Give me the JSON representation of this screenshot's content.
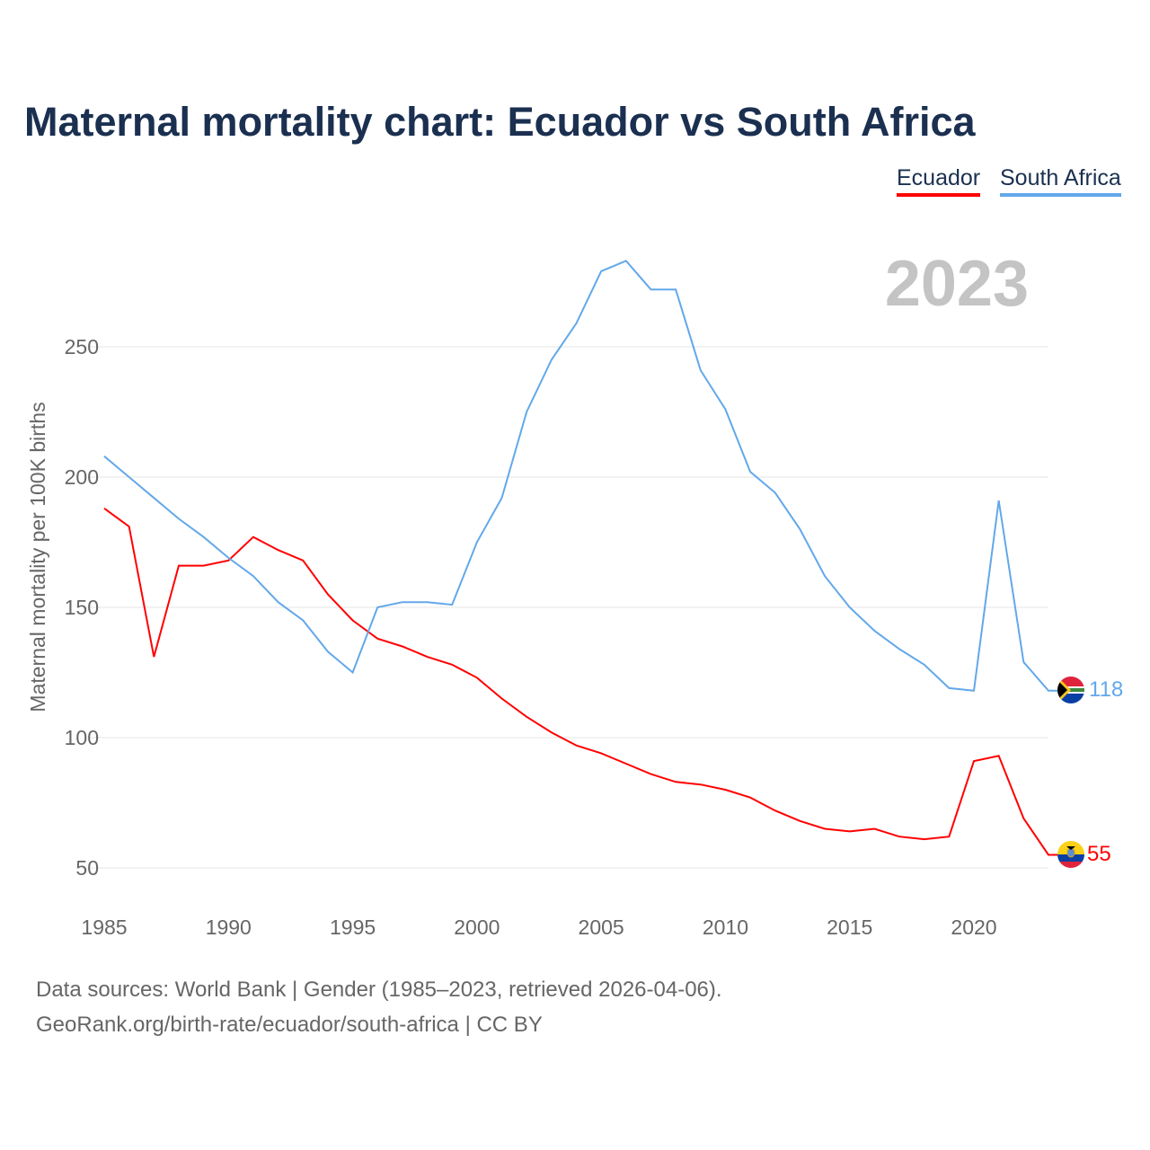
{
  "chart_data": {
    "type": "line",
    "title": "Maternal mortality chart: Ecuador vs South Africa",
    "ylabel": "Maternal mortality per 100K births",
    "xlabel": "",
    "year_label": "2023",
    "x": [
      1985,
      1986,
      1987,
      1988,
      1989,
      1990,
      1991,
      1992,
      1993,
      1994,
      1995,
      1996,
      1997,
      1998,
      1999,
      2000,
      2001,
      2002,
      2003,
      2004,
      2005,
      2006,
      2007,
      2008,
      2009,
      2010,
      2011,
      2012,
      2013,
      2014,
      2015,
      2016,
      2017,
      2018,
      2019,
      2020,
      2021,
      2022,
      2023
    ],
    "xlim": [
      1985,
      2023
    ],
    "ylim": [
      50,
      280
    ],
    "xticks": [
      1985,
      1990,
      1995,
      2000,
      2005,
      2010,
      2015,
      2020
    ],
    "yticks": [
      50,
      100,
      150,
      200,
      250
    ],
    "grid": true,
    "legend_position": "top-right",
    "series": [
      {
        "name": "Ecuador",
        "color": "#ff0000",
        "end_label": "55",
        "flag": "ecuador-flag",
        "values": [
          188,
          181,
          131,
          166,
          166,
          168,
          177,
          172,
          168,
          155,
          145,
          138,
          135,
          131,
          128,
          123,
          115,
          108,
          102,
          97,
          94,
          90,
          86,
          83,
          82,
          80,
          77,
          72,
          68,
          65,
          64,
          65,
          62,
          61,
          62,
          91,
          93,
          69,
          55
        ]
      },
      {
        "name": "South Africa",
        "color": "#62a8ea",
        "end_label": "118",
        "flag": "south-africa-flag",
        "values": [
          208,
          200,
          192,
          184,
          177,
          169,
          162,
          152,
          145,
          133,
          125,
          150,
          152,
          152,
          151,
          175,
          192,
          225,
          245,
          259,
          279,
          283,
          272,
          272,
          241,
          226,
          202,
          194,
          180,
          162,
          150,
          141,
          134,
          128,
          119,
          118,
          191,
          129,
          118
        ]
      }
    ]
  },
  "footer": {
    "line1": "Data sources: World Bank | Gender (1985–2023, retrieved 2026-04-06).",
    "line2": "GeoRank.org/birth-rate/ecuador/south-africa | CC BY"
  }
}
